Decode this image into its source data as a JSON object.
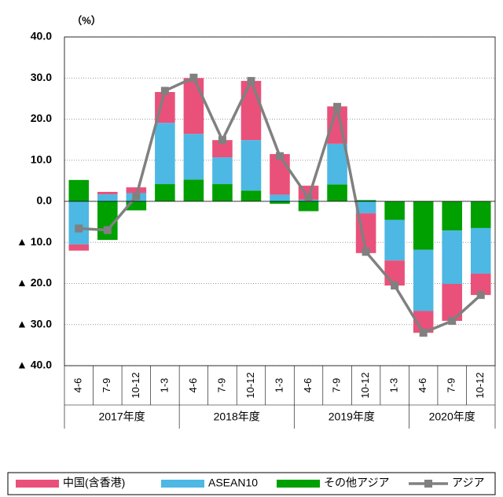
{
  "chart_data": {
    "type": "bar",
    "unit_label": "（%）",
    "categories": [
      "4-6",
      "7-9",
      "10-12",
      "1-3",
      "4-6",
      "7-9",
      "10-12",
      "1-3",
      "4-6",
      "7-9",
      "10-12",
      "1-3",
      "4-6",
      "7-9",
      "10-12"
    ],
    "groups": [
      "2017年度",
      "2018年度",
      "2019年度",
      "2020年度"
    ],
    "series": [
      {
        "name": "中国(含香港)",
        "type": "bar",
        "color": "#e9517a",
        "values": [
          -1.5,
          0.6,
          1.4,
          7.5,
          13.6,
          4.2,
          14.4,
          9.9,
          3.4,
          9.1,
          -9.7,
          -6.1,
          -5.3,
          -9.0,
          -5.2
        ]
      },
      {
        "name": "ASEAN10",
        "type": "bar",
        "color": "#4db8e3",
        "values": [
          -10.5,
          1.7,
          2.0,
          14.9,
          11.1,
          6.5,
          12.3,
          1.6,
          0.4,
          9.9,
          -2.9,
          -9.9,
          -14.9,
          -13.0,
          -11.1
        ]
      },
      {
        "name": "その他アジア",
        "type": "bar",
        "color": "#00a000",
        "values": [
          5.2,
          -9.4,
          -2.2,
          4.2,
          5.3,
          4.2,
          2.6,
          -0.6,
          -2.4,
          4.1,
          0.3,
          -4.5,
          -11.8,
          -7.1,
          -6.5
        ]
      },
      {
        "name": "アジア",
        "type": "line",
        "color": "#808080",
        "values": [
          -6.6,
          -7.0,
          1.2,
          26.9,
          30.1,
          14.9,
          29.3,
          11.0,
          0.8,
          23.0,
          -12.3,
          -20.5,
          -32.0,
          -29.1,
          -22.8
        ]
      }
    ],
    "ylim": [
      -40,
      40
    ],
    "yticks": [
      {
        "value": 40,
        "label": "40.0"
      },
      {
        "value": 30,
        "label": "30.0"
      },
      {
        "value": 20,
        "label": "20.0"
      },
      {
        "value": 10,
        "label": "10.0"
      },
      {
        "value": 0,
        "label": "0.0"
      },
      {
        "value": -10,
        "label": "▲ 10.0"
      },
      {
        "value": -20,
        "label": "▲ 20.0"
      },
      {
        "value": -30,
        "label": "▲ 30.0"
      },
      {
        "value": -40,
        "label": "▲ 40.0"
      }
    ],
    "grid": true
  }
}
